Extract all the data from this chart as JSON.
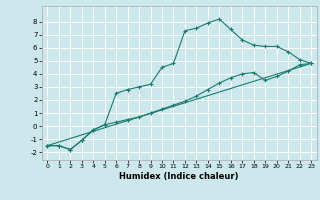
{
  "xlabel": "Humidex (Indice chaleur)",
  "ylabel": "",
  "bg_color": "#cce8ec",
  "grid_color": "#ffffff",
  "line_color": "#1a7a6e",
  "xlim": [
    -0.5,
    23.5
  ],
  "ylim": [
    -2.6,
    9.2
  ],
  "xticks": [
    0,
    1,
    2,
    3,
    4,
    5,
    6,
    7,
    8,
    9,
    10,
    11,
    12,
    13,
    14,
    15,
    16,
    17,
    18,
    19,
    20,
    21,
    22,
    23
  ],
  "yticks": [
    -2,
    -1,
    0,
    1,
    2,
    3,
    4,
    5,
    6,
    7,
    8
  ],
  "curve1_x": [
    0,
    1,
    2,
    3,
    4,
    5,
    6,
    7,
    8,
    9,
    10,
    11,
    12,
    13,
    14,
    15,
    16,
    17,
    18,
    19,
    20,
    21,
    22,
    23
  ],
  "curve1_y": [
    -1.5,
    -1.5,
    -1.8,
    -1.1,
    -0.3,
    0.1,
    2.5,
    2.8,
    3.0,
    3.2,
    4.5,
    4.8,
    7.3,
    7.5,
    7.9,
    8.2,
    7.4,
    6.6,
    6.2,
    6.1,
    6.1,
    5.7,
    5.1,
    4.8
  ],
  "curve2_x": [
    0,
    1,
    2,
    3,
    4,
    5,
    6,
    7,
    8,
    9,
    10,
    11,
    12,
    13,
    14,
    15,
    16,
    17,
    18,
    19,
    20,
    21,
    22,
    23
  ],
  "curve2_y": [
    -1.5,
    -1.5,
    -1.8,
    -1.1,
    -0.3,
    0.1,
    0.3,
    0.5,
    0.7,
    1.0,
    1.3,
    1.6,
    1.9,
    2.3,
    2.8,
    3.3,
    3.7,
    4.0,
    4.1,
    3.5,
    3.8,
    4.2,
    4.7,
    4.8
  ],
  "curve3_x": [
    0,
    23
  ],
  "curve3_y": [
    -1.5,
    4.8
  ]
}
